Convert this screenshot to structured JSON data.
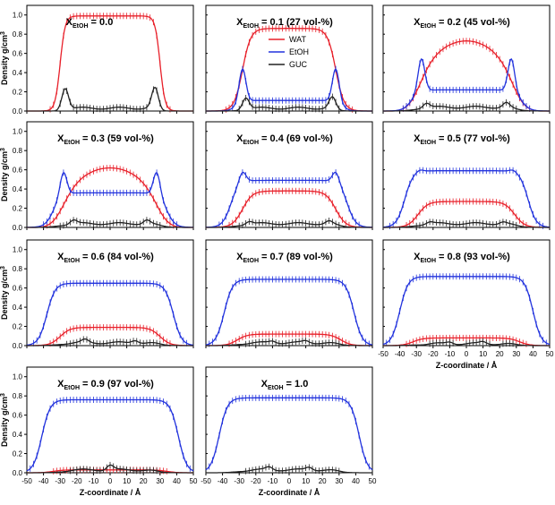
{
  "colors": {
    "wat": "#e8202a",
    "etoh": "#2233dd",
    "guc": "#222222",
    "frame": "#000000"
  },
  "axes": {
    "xlabel": "Z-coordinate / Å",
    "ylabel": "Density g/cm",
    "ylabel_sup": "3",
    "xlim": [
      -50,
      50
    ],
    "ylim": [
      0,
      1.1
    ],
    "xticks": [
      "-50",
      "-40",
      "-30",
      "-20",
      "-10",
      "0",
      "10",
      "20",
      "30",
      "40",
      "50"
    ],
    "yticks": [
      "0.0",
      "0.2",
      "0.4",
      "0.6",
      "0.8",
      "1.0"
    ]
  },
  "legend": {
    "items": [
      {
        "name": "WAT",
        "color": "#e8202a"
      },
      {
        "name": "EtOH",
        "color": "#2233dd"
      },
      {
        "name": "GUC",
        "color": "#222222"
      }
    ]
  },
  "chart_data": [
    {
      "type": "line",
      "title_prefix": "X",
      "title_sub": "EtOH",
      "title_suffix": " = 0.0",
      "series": [
        {
          "name": "WAT",
          "plateau": 0.99,
          "edge": 30,
          "width": 1.5,
          "peak": 0,
          "peakpos": 0
        },
        {
          "name": "GUC",
          "plateau": 0.03,
          "edge": 28,
          "width": 1.5,
          "peak": 0.22,
          "peakpos": 27
        }
      ]
    },
    {
      "type": "line",
      "title_prefix": "X",
      "title_sub": "EtOH",
      "title_suffix": " = 0.1 (27 vol-%)",
      "series": [
        {
          "name": "WAT",
          "plateau": 0.86,
          "edge": 28,
          "width": 2.5,
          "peak": 0,
          "peakpos": 0
        },
        {
          "name": "EtOH",
          "plateau": 0.11,
          "edge": 32,
          "width": 2,
          "peak": 0.34,
          "peakpos": 28
        },
        {
          "name": "GUC",
          "plateau": 0.03,
          "edge": 28,
          "width": 2,
          "peak": 0.12,
          "peakpos": 26
        }
      ]
    },
    {
      "type": "line",
      "title_prefix": "X",
      "title_sub": "EtOH",
      "title_suffix": " = 0.2 (45 vol-%)",
      "series": [
        {
          "name": "WAT",
          "plateau": 0.73,
          "edge": 24,
          "width": 4,
          "peak": 0,
          "peakpos": 0,
          "shape": "dome"
        },
        {
          "name": "EtOH",
          "plateau": 0.22,
          "edge": 33,
          "width": 2.5,
          "peak": 0.34,
          "peakpos": 27
        },
        {
          "name": "GUC",
          "plateau": 0.04,
          "edge": 30,
          "width": 3,
          "peak": 0.05,
          "peakpos": 24
        }
      ]
    },
    {
      "type": "line",
      "title_prefix": "X",
      "title_sub": "EtOH",
      "title_suffix": " = 0.3 (59 vol-%)",
      "series": [
        {
          "name": "WAT",
          "plateau": 0.62,
          "edge": 24,
          "width": 4,
          "peak": 0,
          "peakpos": 0,
          "shape": "dome"
        },
        {
          "name": "EtOH",
          "plateau": 0.36,
          "edge": 34,
          "width": 2.5,
          "peak": 0.24,
          "peakpos": 28
        },
        {
          "name": "GUC",
          "plateau": 0.04,
          "edge": 30,
          "width": 3,
          "peak": 0.04,
          "peakpos": 22
        }
      ]
    },
    {
      "type": "line",
      "title_prefix": "X",
      "title_sub": "EtOH",
      "title_suffix": " = 0.4 (69 vol-%)",
      "series": [
        {
          "name": "WAT",
          "plateau": 0.38,
          "edge": 28,
          "width": 3,
          "peak": 0,
          "peakpos": 0
        },
        {
          "name": "EtOH",
          "plateau": 0.49,
          "edge": 35,
          "width": 2.5,
          "peak": 0.11,
          "peakpos": 28
        },
        {
          "name": "GUC",
          "plateau": 0.04,
          "edge": 30,
          "width": 3,
          "peak": 0.03,
          "peakpos": 24
        }
      ]
    },
    {
      "type": "line",
      "title_prefix": "X",
      "title_sub": "EtOH",
      "title_suffix": " = 0.5 (77 vol-%)",
      "series": [
        {
          "name": "WAT",
          "plateau": 0.27,
          "edge": 29,
          "width": 3,
          "peak": 0,
          "peakpos": 0
        },
        {
          "name": "EtOH",
          "plateau": 0.59,
          "edge": 37,
          "width": 2.5,
          "peak": 0.02,
          "peakpos": 28
        },
        {
          "name": "GUC",
          "plateau": 0.04,
          "edge": 30,
          "width": 3,
          "peak": 0.02,
          "peakpos": 22
        }
      ]
    },
    {
      "type": "line",
      "title_prefix": "X",
      "title_sub": "EtOH",
      "title_suffix": " = 0.6 (84 vol-%)",
      "series": [
        {
          "name": "WAT",
          "plateau": 0.19,
          "edge": 30,
          "width": 3,
          "peak": 0,
          "peakpos": 0
        },
        {
          "name": "EtOH",
          "plateau": 0.65,
          "edge": 38,
          "width": 2.5,
          "peak": 0,
          "peakpos": 0
        },
        {
          "name": "GUC",
          "plateau": 0.03,
          "edge": 30,
          "width": 3,
          "peak": 0.03,
          "peakpos": 15
        }
      ]
    },
    {
      "type": "line",
      "title_prefix": "X",
      "title_sub": "EtOH",
      "title_suffix": " = 0.7 (89 vol-%)",
      "series": [
        {
          "name": "WAT",
          "plateau": 0.12,
          "edge": 31,
          "width": 3,
          "peak": 0,
          "peakpos": 0
        },
        {
          "name": "EtOH",
          "plateau": 0.69,
          "edge": 39,
          "width": 2.5,
          "peak": 0,
          "peakpos": 0
        },
        {
          "name": "GUC",
          "plateau": 0.03,
          "edge": 30,
          "width": 3,
          "peak": 0.02,
          "peakpos": 10
        }
      ]
    },
    {
      "type": "line",
      "title_prefix": "X",
      "title_sub": "EtOH",
      "title_suffix": " = 0.8 (93 vol-%)",
      "series": [
        {
          "name": "WAT",
          "plateau": 0.08,
          "edge": 32,
          "width": 3,
          "peak": 0,
          "peakpos": 0
        },
        {
          "name": "EtOH",
          "plateau": 0.72,
          "edge": 40,
          "width": 2.5,
          "peak": 0,
          "peakpos": 0
        },
        {
          "name": "GUC",
          "plateau": 0.02,
          "edge": 30,
          "width": 3,
          "peak": 0.02,
          "peakpos": 10
        }
      ]
    },
    {
      "type": "line",
      "title_prefix": "X",
      "title_sub": "EtOH",
      "title_suffix": " = 0.9 (97 vol-%)",
      "series": [
        {
          "name": "WAT",
          "plateau": 0.03,
          "edge": 34,
          "width": 3,
          "peak": 0,
          "peakpos": 0
        },
        {
          "name": "EtOH",
          "plateau": 0.76,
          "edge": 41,
          "width": 2.5,
          "peak": 0,
          "peakpos": 0
        },
        {
          "name": "GUC",
          "plateau": 0.03,
          "edge": 28,
          "width": 3,
          "peak": 0.05,
          "peakpos": 0
        }
      ]
    },
    {
      "type": "line",
      "title_prefix": "X",
      "title_sub": "EtOH",
      "title_suffix": " = 1.0",
      "series": [
        {
          "name": "EtOH",
          "plateau": 0.78,
          "edge": 42,
          "width": 2.5,
          "peak": 0,
          "peakpos": 0
        },
        {
          "name": "GUC",
          "plateau": 0.03,
          "edge": 30,
          "width": 3,
          "peak": 0.03,
          "peakpos": 12
        }
      ]
    }
  ]
}
